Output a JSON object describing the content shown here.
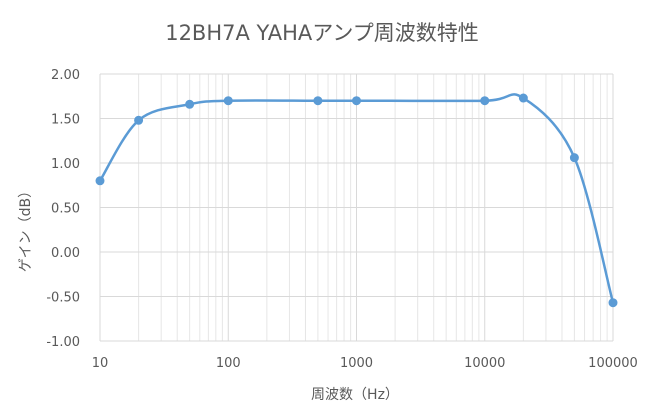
{
  "chart_data": {
    "type": "scatter",
    "title": "12BH7A  YAHAアンプ周波数特性",
    "xlabel": "周波数（Hz）",
    "ylabel": "ゲイン（dB）",
    "x_scale": "log",
    "xlim": [
      10,
      100000
    ],
    "ylim": [
      -1.0,
      2.0
    ],
    "x_ticks": [
      10,
      100,
      1000,
      10000,
      100000
    ],
    "x_tick_labels": [
      "10",
      "100",
      "1000",
      "10000",
      "100000"
    ],
    "y_ticks": [
      -1.0,
      -0.5,
      0.0,
      0.5,
      1.0,
      1.5,
      2.0
    ],
    "y_tick_labels": [
      "-1.00",
      "-0.50",
      "0.00",
      "0.50",
      "1.00",
      "1.50",
      "2.00"
    ],
    "grid": true,
    "minor_grid": true,
    "smooth_line": true,
    "series": [
      {
        "color": "#5B9BD5",
        "x": [
          10,
          20,
          50,
          100,
          500,
          1000,
          10000,
          20000,
          50000,
          100000
        ],
        "y": [
          0.8,
          1.48,
          1.66,
          1.7,
          1.7,
          1.7,
          1.7,
          1.73,
          1.06,
          -0.57
        ]
      }
    ]
  }
}
